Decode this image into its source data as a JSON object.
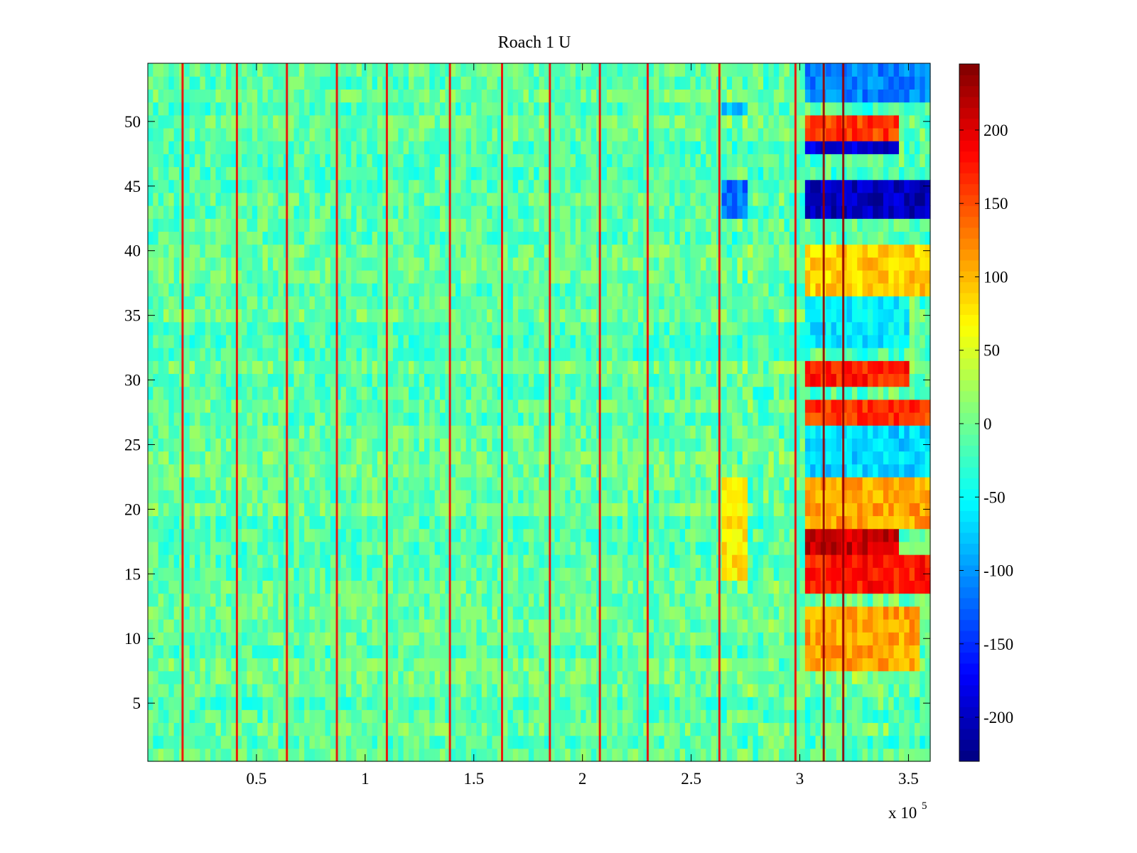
{
  "chart_data": {
    "type": "heatmap",
    "title": "Roach 1 U",
    "xlabel": "",
    "ylabel": "",
    "x_multiplier_label": {
      "base": "x 10",
      "exponent": "5"
    },
    "xlim": [
      0,
      3.6
    ],
    "ylim": [
      0.5,
      54.5
    ],
    "x_ticks": [
      0.5,
      1,
      1.5,
      2,
      2.5,
      3,
      3.5
    ],
    "x_tick_labels": [
      "0.5",
      "1",
      "1.5",
      "2",
      "2.5",
      "3",
      "3.5"
    ],
    "y_ticks": [
      5,
      10,
      15,
      20,
      25,
      30,
      35,
      40,
      45,
      50
    ],
    "y_tick_labels": [
      "5",
      "10",
      "15",
      "20",
      "25",
      "30",
      "35",
      "40",
      "45",
      "50"
    ],
    "rows": 54,
    "colormap": "jet",
    "clim": [
      -230,
      245
    ],
    "colorbar": {
      "ticks": [
        -200,
        -150,
        -100,
        -50,
        0,
        50,
        100,
        150,
        200
      ],
      "tick_labels": [
        "-200",
        "-150",
        "-100",
        "-50",
        "0",
        "50",
        "100",
        "150",
        "200"
      ],
      "range": [
        -230,
        245
      ]
    },
    "vertical_stripes_x": [
      0.16,
      0.41,
      0.64,
      0.87,
      1.1,
      1.39,
      1.63,
      1.85,
      2.08,
      2.3,
      2.63,
      2.98,
      3.11,
      3.2
    ],
    "row_bands": [
      {
        "rows": [
          43,
          45
        ],
        "x": [
          3.01,
          3.58
        ],
        "value": -200
      },
      {
        "rows": [
          48,
          48
        ],
        "x": [
          3.02,
          3.45
        ],
        "value": -190
      },
      {
        "rows": [
          49,
          50
        ],
        "x": [
          3.02,
          3.45
        ],
        "value": 160
      },
      {
        "rows": [
          52,
          54
        ],
        "x": [
          3.02,
          3.58
        ],
        "value": -110
      },
      {
        "rows": [
          30,
          31
        ],
        "x": [
          3.02,
          3.5
        ],
        "value": 170
      },
      {
        "rows": [
          27,
          28
        ],
        "x": [
          3.02,
          3.58
        ],
        "value": 160
      },
      {
        "rows": [
          17,
          18
        ],
        "x": [
          3.02,
          3.45
        ],
        "value": 210
      },
      {
        "rows": [
          14,
          16
        ],
        "x": [
          3.02,
          3.58
        ],
        "value": 175
      },
      {
        "rows": [
          19,
          22
        ],
        "x": [
          3.02,
          3.58
        ],
        "value": 110
      },
      {
        "rows": [
          8,
          12
        ],
        "x": [
          3.02,
          3.55
        ],
        "value": 110
      },
      {
        "rows": [
          37,
          40
        ],
        "x": [
          3.02,
          3.58
        ],
        "value": 90
      },
      {
        "rows": [
          33,
          36
        ],
        "x": [
          3.02,
          3.5
        ],
        "value": -60
      },
      {
        "rows": [
          23,
          26
        ],
        "x": [
          3.02,
          3.58
        ],
        "value": -70
      },
      {
        "rows": [
          43,
          45
        ],
        "x": [
          2.63,
          2.75
        ],
        "value": -120
      },
      {
        "rows": [
          51,
          51
        ],
        "x": [
          2.63,
          2.75
        ],
        "value": -80
      },
      {
        "rows": [
          15,
          22
        ],
        "x": [
          2.63,
          2.75
        ],
        "value": 80
      }
    ]
  }
}
